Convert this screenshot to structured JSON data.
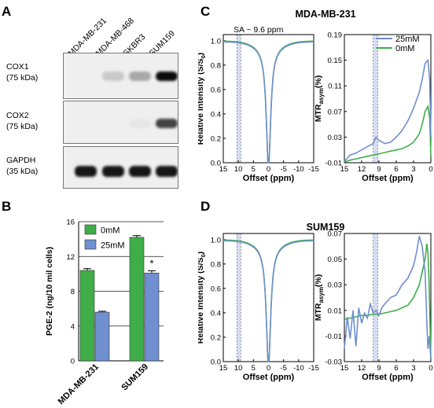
{
  "panels": {
    "a": "A",
    "b": "B",
    "c": "C",
    "d": "D"
  },
  "blot": {
    "lanes": [
      "MDA-MB-231",
      "MDA-MB-468",
      "SKBR3",
      "SUM159"
    ],
    "rows": [
      {
        "name": "COX1",
        "kda": "(75 kDa)",
        "bands": [
          0.0,
          0.15,
          0.3,
          1.0
        ]
      },
      {
        "name": "COX2",
        "kda": "(75 kDa)",
        "bands": [
          0.0,
          0.0,
          0.02,
          0.75
        ]
      },
      {
        "name": "GAPDH",
        "kda": "(35 kDa)",
        "bands": [
          0.95,
          0.95,
          0.95,
          0.95
        ]
      }
    ]
  },
  "chart_data": [
    {
      "panel": "B",
      "type": "bar",
      "categories": [
        "MDA-MB-231",
        "SUM159"
      ],
      "series": [
        {
          "name": "0mM",
          "color": "#3fae49",
          "values": [
            10.4,
            14.2
          ],
          "errors": [
            0.2,
            0.2
          ]
        },
        {
          "name": "25mM",
          "color": "#6f8fd0",
          "values": [
            5.6,
            10.1
          ],
          "errors": [
            0.1,
            0.25
          ]
        }
      ],
      "ylabel": "PGE-2 (ng/10 mil cells)",
      "ylim": [
        0,
        16
      ],
      "yticks": [
        "0",
        "4",
        "8",
        "12",
        "16"
      ],
      "annotation": "*",
      "grid": true,
      "legend": "top-left"
    },
    {
      "panel": "C",
      "type": "line",
      "title": "MDA-MB-231",
      "annotation": "SA ~ 9.6 ppm",
      "legend": [
        "25mM",
        "0mM"
      ],
      "z": {
        "ylabel": "Relative Intensity (S/S0)",
        "xlabel": "Offset (ppm)",
        "xlim": [
          15,
          -15
        ],
        "xticks": [
          "15",
          "10",
          "5",
          "0",
          "-5",
          "-10",
          "-15"
        ],
        "ylim": [
          0,
          1.05
        ],
        "yticks": [
          "0.0",
          "0.2",
          "0.4",
          "0.6",
          "0.8",
          "1.0"
        ]
      },
      "mtr": {
        "ylabel": "MTRasym(%)",
        "xlabel": "Offset (ppm)",
        "xlim": [
          15,
          0
        ],
        "xticks": [
          "15",
          "12",
          "9",
          "6",
          "3",
          "0"
        ],
        "ylim": [
          -0.01,
          0.19
        ],
        "yticks": [
          "-0.01",
          "0.03",
          "0.07",
          "0.11",
          "0.15",
          "0.19"
        ],
        "series": [
          {
            "name": "25mM",
            "color": "#6f8fd0",
            "x": [
              15,
              14,
              13,
              12,
              11,
              10,
              9.5,
              9,
              8,
              7,
              6,
              5,
              4,
              3,
              2,
              1.5,
              1,
              0.5,
              0.2,
              0
            ],
            "y": [
              -0.008,
              0.002,
              0.005,
              0.01,
              0.015,
              0.02,
              0.03,
              0.025,
              0.02,
              0.022,
              0.03,
              0.04,
              0.055,
              0.075,
              0.1,
              0.12,
              0.145,
              0.15,
              0.12,
              0.03
            ]
          },
          {
            "name": "0mM",
            "color": "#3fae49",
            "x": [
              15,
              14,
              13,
              12,
              11,
              10,
              9,
              8,
              7,
              6,
              5,
              4,
              3,
              2,
              1.5,
              1,
              0.5,
              0.2,
              0
            ],
            "y": [
              -0.009,
              -0.006,
              -0.004,
              -0.002,
              0.0,
              0.002,
              0.004,
              0.006,
              0.008,
              0.01,
              0.012,
              0.016,
              0.022,
              0.035,
              0.05,
              0.07,
              0.078,
              0.06,
              0.0
            ]
          }
        ]
      }
    },
    {
      "panel": "D",
      "type": "line",
      "title": "SUM159",
      "z": {
        "ylabel": "Relative Intensity (S/S0)",
        "xlabel": "Offset (ppm)",
        "xlim": [
          15,
          -15
        ],
        "xticks": [
          "15",
          "10",
          "5",
          "0",
          "-5",
          "-10",
          "-15"
        ],
        "ylim": [
          0,
          1.05
        ],
        "yticks": [
          "0.0",
          "0.2",
          "0.4",
          "0.6",
          "0.8",
          "1.0"
        ]
      },
      "mtr": {
        "ylabel": "MTRasym(%)",
        "xlabel": "Offset (ppm)",
        "xlim": [
          15,
          0
        ],
        "xticks": [
          "15",
          "12",
          "9",
          "6",
          "3",
          "0"
        ],
        "ylim": [
          -0.03,
          0.07
        ],
        "yticks": [
          "-0.03",
          "-0.01",
          "0.01",
          "0.03",
          "0.05",
          "0.07"
        ],
        "series": [
          {
            "name": "25mM",
            "color": "#6f8fd0",
            "x": [
              15,
              14.5,
              14,
              13.5,
              13,
              12.5,
              12,
              11.5,
              11,
              10.5,
              10,
              9.5,
              9,
              8.5,
              8,
              7,
              6,
              5,
              4,
              3,
              2.5,
              2,
              1.5,
              1,
              0.7,
              0.5,
              0.3,
              0
            ],
            "y": [
              -0.02,
              0.005,
              -0.012,
              0.01,
              -0.018,
              0.012,
              0.0,
              0.008,
              0.004,
              0.015,
              0.008,
              0.01,
              0.006,
              0.012,
              0.015,
              0.02,
              0.022,
              0.03,
              0.035,
              0.045,
              0.055,
              0.068,
              0.06,
              0.04,
              0.0,
              -0.02,
              -0.01,
              -0.028
            ]
          },
          {
            "name": "0mM",
            "color": "#3fae49",
            "x": [
              15,
              14,
              13,
              12,
              11,
              10,
              9,
              8,
              7,
              6,
              5,
              4,
              3,
              2,
              1.5,
              1,
              0.7,
              0.5,
              0.3,
              0
            ],
            "y": [
              0.003,
              0.004,
              0.005,
              0.006,
              0.006,
              0.007,
              0.007,
              0.008,
              0.009,
              0.01,
              0.012,
              0.014,
              0.02,
              0.03,
              0.04,
              0.05,
              0.062,
              0.055,
              0.03,
              -0.028
            ]
          }
        ]
      }
    }
  ]
}
